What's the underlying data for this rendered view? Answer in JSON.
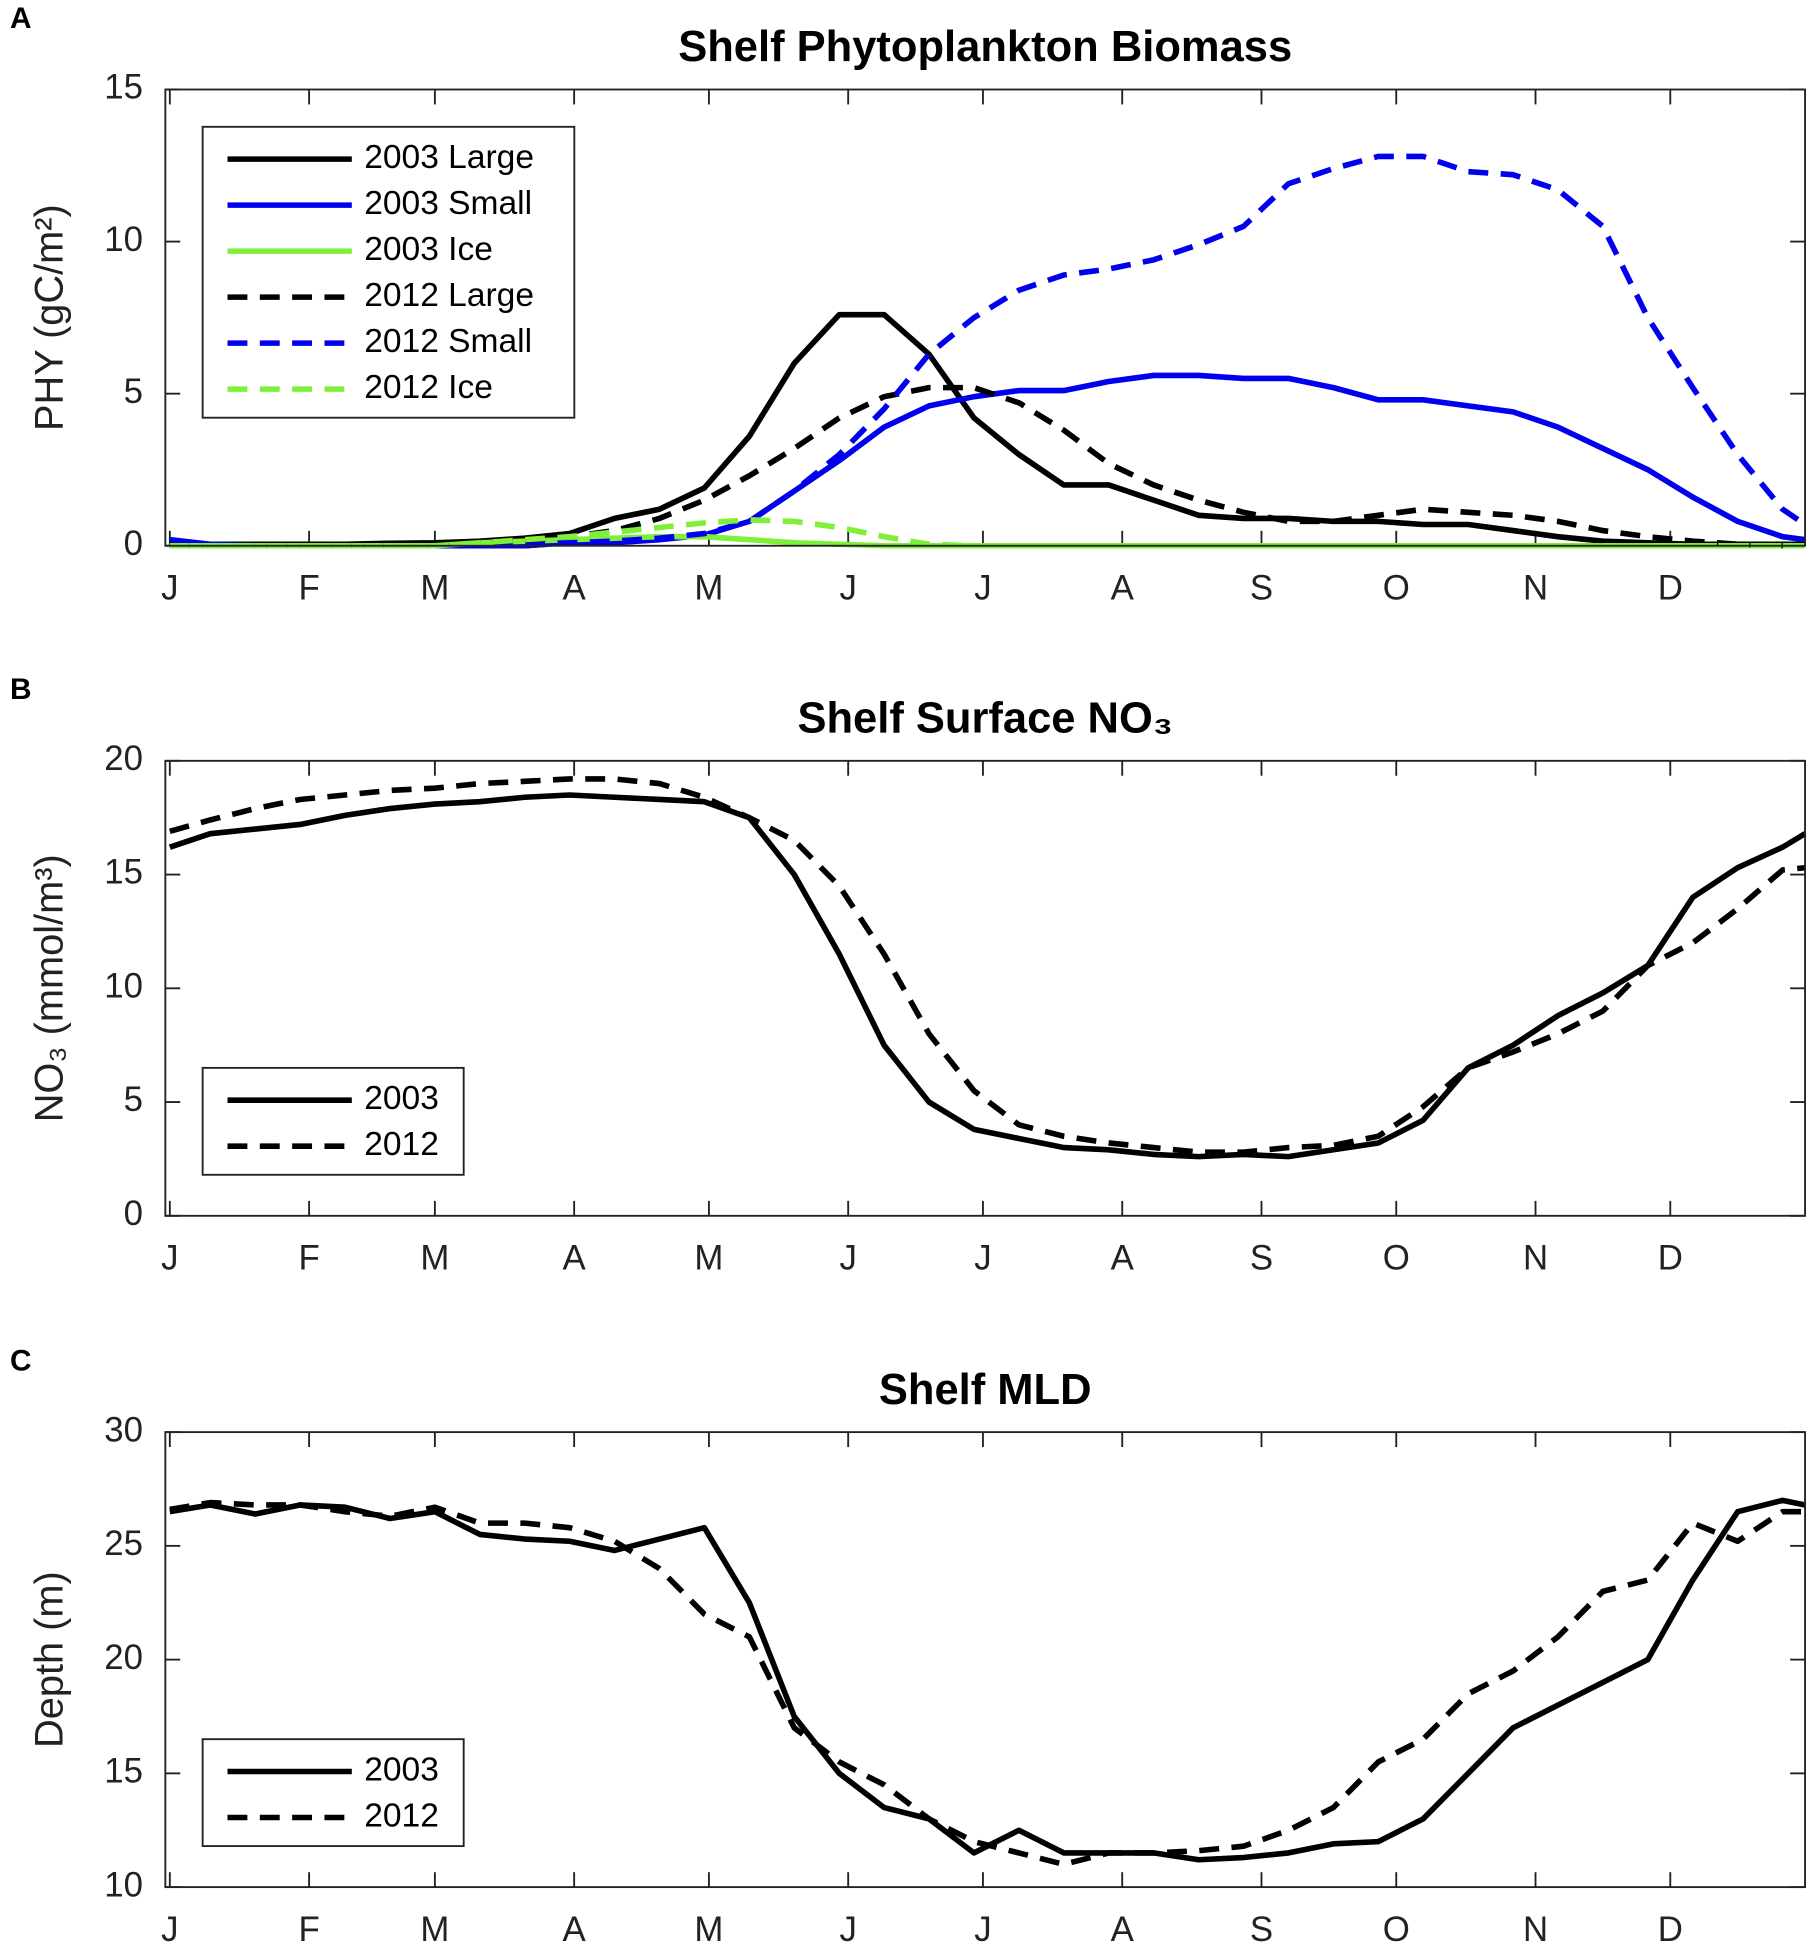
{
  "chart_data": [
    {
      "type": "line",
      "panel_label": "A",
      "title": "Shelf Phytoplankton Biomass",
      "ylabel": "PHY (gC/m²)",
      "x": [
        1,
        10,
        20,
        30,
        40,
        50,
        60,
        70,
        80,
        90,
        100,
        110,
        120,
        130,
        140,
        150,
        160,
        170,
        180,
        190,
        200,
        210,
        220,
        230,
        240,
        250,
        260,
        270,
        280,
        290,
        300,
        310,
        320,
        330,
        340,
        350,
        360,
        365
      ],
      "xlim": [
        0,
        365
      ],
      "xticks": [
        {
          "value": 1,
          "label": "J"
        },
        {
          "value": 32,
          "label": "F"
        },
        {
          "value": 60,
          "label": "M"
        },
        {
          "value": 91,
          "label": "A"
        },
        {
          "value": 121,
          "label": "M"
        },
        {
          "value": 152,
          "label": "J"
        },
        {
          "value": 182,
          "label": "J"
        },
        {
          "value": 213,
          "label": "A"
        },
        {
          "value": 244,
          "label": "S"
        },
        {
          "value": 274,
          "label": "O"
        },
        {
          "value": 305,
          "label": "N"
        },
        {
          "value": 335,
          "label": "D"
        }
      ],
      "ylim": [
        0,
        15
      ],
      "yticks": [
        0,
        5,
        10,
        15
      ],
      "grid": false,
      "legend": "upper left",
      "series": [
        {
          "name": "2003 Large",
          "color": "#000000",
          "linestyle": "solid",
          "values": [
            0.05,
            0.05,
            0.05,
            0.05,
            0.05,
            0.08,
            0.1,
            0.15,
            0.25,
            0.4,
            0.9,
            1.2,
            1.9,
            3.6,
            6.0,
            7.6,
            7.6,
            6.3,
            4.2,
            3.0,
            2.0,
            2.0,
            1.5,
            1.0,
            0.9,
            0.9,
            0.8,
            0.8,
            0.7,
            0.7,
            0.5,
            0.3,
            0.15,
            0.1,
            0.05,
            0.05,
            0.05,
            0.05
          ]
        },
        {
          "name": "2003 Small",
          "color": "#0000ee",
          "linestyle": "solid",
          "values": [
            0.2,
            0.05,
            0,
            0,
            0,
            0,
            0,
            0,
            0,
            0.1,
            0.1,
            0.2,
            0.35,
            0.8,
            1.8,
            2.8,
            3.9,
            4.6,
            4.9,
            5.1,
            5.1,
            5.4,
            5.6,
            5.6,
            5.5,
            5.5,
            5.2,
            4.8,
            4.8,
            4.6,
            4.4,
            3.9,
            3.2,
            2.5,
            1.6,
            0.8,
            0.3,
            0.2
          ]
        },
        {
          "name": "2003 Ice",
          "color": "#7ff03a",
          "linestyle": "solid",
          "values": [
            0,
            0,
            0,
            0,
            0,
            0,
            0,
            0.1,
            0.15,
            0.2,
            0.25,
            0.3,
            0.3,
            0.2,
            0.1,
            0.05,
            0,
            0,
            0,
            0,
            0,
            0,
            0,
            0,
            0,
            0,
            0,
            0,
            0,
            0,
            0,
            0,
            0,
            0,
            0,
            0,
            0,
            0
          ]
        },
        {
          "name": "2012 Large",
          "color": "#000000",
          "linestyle": "dashed",
          "values": [
            0,
            0,
            0,
            0,
            0,
            0,
            0,
            0.1,
            0.15,
            0.3,
            0.5,
            0.9,
            1.5,
            2.3,
            3.2,
            4.2,
            4.9,
            5.2,
            5.2,
            4.7,
            3.8,
            2.7,
            2.0,
            1.5,
            1.1,
            0.8,
            0.8,
            1.0,
            1.2,
            1.1,
            1.0,
            0.8,
            0.5,
            0.3,
            0.15,
            0.05,
            0,
            0
          ]
        },
        {
          "name": "2012 Small",
          "color": "#0000ee",
          "linestyle": "dashed",
          "values": [
            0,
            0,
            0,
            0,
            0,
            0,
            0,
            0,
            0,
            0.1,
            0.15,
            0.25,
            0.4,
            0.8,
            1.8,
            3.0,
            4.5,
            6.3,
            7.5,
            8.4,
            8.9,
            9.1,
            9.4,
            9.9,
            10.5,
            11.9,
            12.4,
            12.8,
            12.8,
            12.3,
            12.2,
            11.7,
            10.5,
            7.5,
            5.2,
            3.0,
            1.2,
            0.7
          ]
        },
        {
          "name": "2012 Ice",
          "color": "#7ff03a",
          "linestyle": "dashed",
          "values": [
            0,
            0,
            0,
            0,
            0,
            0,
            0,
            0.1,
            0.2,
            0.3,
            0.45,
            0.6,
            0.75,
            0.85,
            0.8,
            0.6,
            0.3,
            0.05,
            0,
            0,
            0,
            0,
            0,
            0,
            0,
            0,
            0,
            0,
            0,
            0,
            0,
            0,
            0,
            0,
            0,
            0,
            0,
            0
          ]
        }
      ]
    },
    {
      "type": "line",
      "panel_label": "B",
      "title": "Shelf Surface NO₃",
      "ylabel": "NO₃ (mmol/m³)",
      "x": [
        1,
        10,
        20,
        30,
        40,
        50,
        60,
        70,
        80,
        90,
        100,
        110,
        120,
        130,
        140,
        150,
        160,
        170,
        180,
        190,
        200,
        210,
        220,
        230,
        240,
        250,
        260,
        270,
        280,
        290,
        300,
        310,
        320,
        330,
        340,
        350,
        360,
        365
      ],
      "xlim": [
        0,
        365
      ],
      "xticks": [
        {
          "value": 1,
          "label": "J"
        },
        {
          "value": 32,
          "label": "F"
        },
        {
          "value": 60,
          "label": "M"
        },
        {
          "value": 91,
          "label": "A"
        },
        {
          "value": 121,
          "label": "M"
        },
        {
          "value": 152,
          "label": "J"
        },
        {
          "value": 182,
          "label": "J"
        },
        {
          "value": 213,
          "label": "A"
        },
        {
          "value": 244,
          "label": "S"
        },
        {
          "value": 274,
          "label": "O"
        },
        {
          "value": 305,
          "label": "N"
        },
        {
          "value": 335,
          "label": "D"
        }
      ],
      "ylim": [
        0,
        20
      ],
      "yticks": [
        0,
        5,
        10,
        15,
        20
      ],
      "grid": false,
      "legend": "lower left",
      "series": [
        {
          "name": "2003",
          "color": "#000000",
          "linestyle": "solid",
          "values": [
            16.2,
            16.8,
            17.0,
            17.2,
            17.6,
            17.9,
            18.1,
            18.2,
            18.4,
            18.5,
            18.4,
            18.3,
            18.2,
            17.5,
            15.0,
            11.5,
            7.5,
            5.0,
            3.8,
            3.4,
            3.0,
            2.9,
            2.7,
            2.6,
            2.7,
            2.6,
            2.9,
            3.2,
            4.2,
            6.5,
            7.5,
            8.8,
            9.8,
            11.0,
            14.0,
            15.3,
            16.2,
            16.8
          ]
        },
        {
          "name": "2012",
          "color": "#000000",
          "linestyle": "dashed",
          "values": [
            16.9,
            17.4,
            17.9,
            18.3,
            18.5,
            18.7,
            18.8,
            19.0,
            19.1,
            19.2,
            19.2,
            19.0,
            18.4,
            17.5,
            16.5,
            14.5,
            11.5,
            8.0,
            5.5,
            4.0,
            3.5,
            3.2,
            3.0,
            2.8,
            2.8,
            3.0,
            3.1,
            3.5,
            4.8,
            6.5,
            7.2,
            8.0,
            9.0,
            11.0,
            12.0,
            13.5,
            15.2,
            15.3
          ]
        }
      ]
    },
    {
      "type": "line",
      "panel_label": "C",
      "title": "Shelf MLD",
      "ylabel": "Depth (m)",
      "x": [
        1,
        10,
        20,
        30,
        40,
        50,
        60,
        70,
        80,
        90,
        100,
        110,
        120,
        130,
        140,
        150,
        160,
        170,
        180,
        190,
        200,
        210,
        220,
        230,
        240,
        250,
        260,
        270,
        280,
        290,
        300,
        310,
        320,
        330,
        340,
        350,
        360,
        365
      ],
      "xlim": [
        0,
        365
      ],
      "xticks": [
        {
          "value": 1,
          "label": "J"
        },
        {
          "value": 32,
          "label": "F"
        },
        {
          "value": 60,
          "label": "M"
        },
        {
          "value": 91,
          "label": "A"
        },
        {
          "value": 121,
          "label": "M"
        },
        {
          "value": 152,
          "label": "J"
        },
        {
          "value": 182,
          "label": "J"
        },
        {
          "value": 213,
          "label": "A"
        },
        {
          "value": 244,
          "label": "S"
        },
        {
          "value": 274,
          "label": "O"
        },
        {
          "value": 305,
          "label": "N"
        },
        {
          "value": 335,
          "label": "D"
        }
      ],
      "ylim": [
        10,
        30
      ],
      "yticks": [
        10,
        15,
        20,
        25,
        30
      ],
      "grid": false,
      "legend": "lower left",
      "series": [
        {
          "name": "2003",
          "color": "#000000",
          "linestyle": "solid",
          "values": [
            26.5,
            26.8,
            26.4,
            26.8,
            26.7,
            26.2,
            26.5,
            25.5,
            25.3,
            25.2,
            24.8,
            25.3,
            25.8,
            22.5,
            17.5,
            15.0,
            13.5,
            13.0,
            11.5,
            12.5,
            11.5,
            11.5,
            11.5,
            11.2,
            11.3,
            11.5,
            11.9,
            12.0,
            13.0,
            15.0,
            17.0,
            18.0,
            19.0,
            20.0,
            23.5,
            26.5,
            27.0,
            26.8
          ]
        },
        {
          "name": "2012",
          "color": "#000000",
          "linestyle": "dashed",
          "values": [
            26.6,
            26.9,
            26.8,
            26.8,
            26.5,
            26.3,
            26.7,
            26.0,
            26.0,
            25.8,
            25.2,
            24.0,
            22.0,
            21.0,
            17.0,
            15.5,
            14.5,
            13.0,
            12.0,
            11.5,
            11.0,
            11.5,
            11.5,
            11.6,
            11.8,
            12.5,
            13.5,
            15.5,
            16.5,
            18.5,
            19.5,
            21.0,
            23.0,
            23.5,
            26.0,
            25.2,
            26.5,
            26.5
          ]
        }
      ]
    }
  ]
}
